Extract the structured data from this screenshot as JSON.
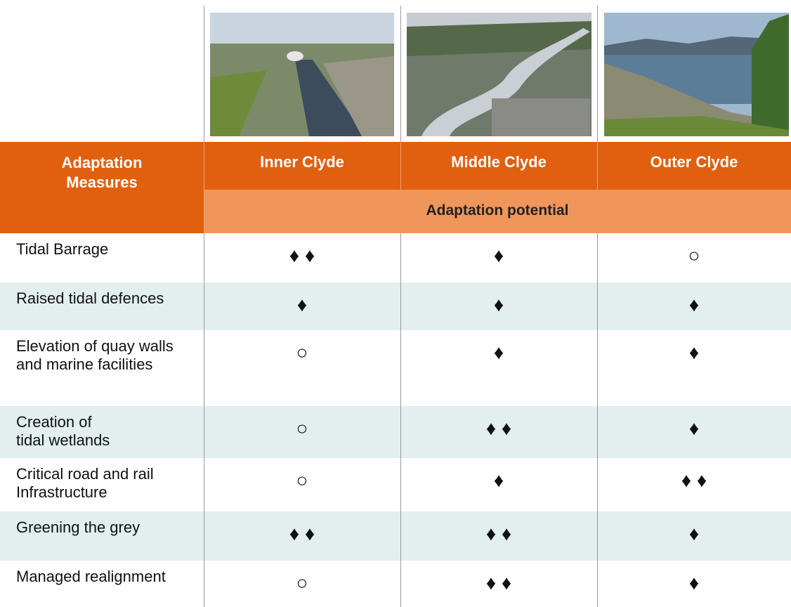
{
  "table": {
    "header": {
      "first": "Adaptation\nMeasures",
      "columns": [
        "Inner Clyde",
        "Middle Clyde",
        "Outer Clyde"
      ],
      "subheader": "Adaptation potential"
    },
    "rows": [
      {
        "label": "Tidal Barrage",
        "cells": [
          "♦ ♦",
          "♦",
          "○"
        ]
      },
      {
        "label": "Raised tidal defences",
        "cells": [
          "♦",
          "♦",
          "♦"
        ]
      },
      {
        "label": "Elevation of quay walls and marine facilities",
        "cells": [
          "○",
          "♦",
          "♦"
        ]
      },
      {
        "label": "Creation of\ntidal wetlands",
        "cells": [
          "○",
          "♦ ♦",
          "♦"
        ]
      },
      {
        "label": "Critical road and rail\nInfrastructure",
        "cells": [
          "○",
          "♦",
          "♦ ♦"
        ]
      },
      {
        "label": "Greening the grey",
        "cells": [
          "♦ ♦",
          "♦ ♦",
          "♦"
        ]
      },
      {
        "label": "Managed realignment",
        "cells": [
          "○",
          "♦ ♦",
          "♦"
        ]
      }
    ]
  }
}
